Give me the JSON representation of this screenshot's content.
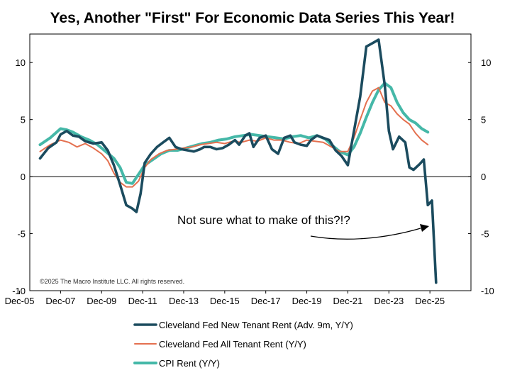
{
  "chart_data": {
    "type": "line",
    "title": "Yes, Another \"First\" For Economic Data Series This Year!",
    "x_tick_labels": [
      "Dec-05",
      "Dec-07",
      "Dec-09",
      "Dec-11",
      "Dec-13",
      "Dec-15",
      "Dec-17",
      "Dec-19",
      "Dec-21",
      "Dec-23",
      "Dec-25"
    ],
    "xlim": [
      2005.5,
      2027.0
    ],
    "ylim": [
      -10,
      12.5
    ],
    "y_ticks": [
      -10,
      -5,
      0,
      5,
      10
    ],
    "y_tick_labels": [
      "-10",
      "-5",
      "0",
      "5",
      "10"
    ],
    "zero_line": true,
    "annotation": "Not sure what to make of this?!?",
    "copyright": "©2025 The Macro Institute LLC. All rights reserved.",
    "colors": {
      "new_tenant": "#1b4b5e",
      "all_tenant": "#e4704f",
      "cpi_rent": "#45b8a8"
    },
    "series": [
      {
        "name": "Cleveland Fed New Tenant Rent (Adv. 9m, Y/Y)",
        "color_key": "new_tenant",
        "x": [
          2006.0,
          2006.4,
          2006.8,
          2007.0,
          2007.3,
          2007.6,
          2007.9,
          2008.2,
          2008.6,
          2009.0,
          2009.3,
          2009.6,
          2009.9,
          2010.2,
          2010.5,
          2010.7,
          2010.9,
          2011.1,
          2011.4,
          2011.7,
          2012.0,
          2012.3,
          2012.6,
          2012.9,
          2013.2,
          2013.5,
          2013.8,
          2014.0,
          2014.3,
          2014.6,
          2014.9,
          2015.2,
          2015.5,
          2015.7,
          2016.0,
          2016.2,
          2016.4,
          2016.7,
          2017.0,
          2017.3,
          2017.6,
          2017.9,
          2018.2,
          2018.4,
          2018.7,
          2019.0,
          2019.2,
          2019.5,
          2019.8,
          2020.1,
          2020.4,
          2020.7,
          2021.0,
          2021.3,
          2021.6,
          2021.9,
          2022.2,
          2022.5,
          2022.8,
          2023.0,
          2023.2,
          2023.5,
          2023.8,
          2024.0,
          2024.2,
          2024.5,
          2024.7,
          2024.9,
          2025.1,
          2025.3
        ],
        "values": [
          1.6,
          2.5,
          3.0,
          3.7,
          4.0,
          3.6,
          3.5,
          3.1,
          2.9,
          3.0,
          2.3,
          1.0,
          -0.7,
          -2.5,
          -2.8,
          -3.1,
          -1.5,
          1.2,
          2.0,
          2.6,
          3.0,
          3.4,
          2.6,
          2.4,
          2.3,
          2.2,
          2.4,
          2.6,
          2.6,
          2.4,
          2.5,
          2.8,
          3.2,
          2.8,
          3.6,
          3.8,
          2.6,
          3.4,
          3.6,
          2.4,
          2.0,
          3.4,
          3.6,
          3.0,
          2.8,
          2.7,
          3.2,
          3.6,
          3.4,
          3.2,
          2.3,
          1.8,
          1.0,
          4.0,
          7.0,
          11.4,
          11.7,
          12.0,
          8.0,
          4.0,
          2.4,
          3.5,
          3.0,
          0.8,
          0.6,
          1.1,
          1.5,
          -2.5,
          -2.1,
          -9.3
        ]
      },
      {
        "name": "Cleveland Fed All Tenant Rent (Y/Y)",
        "color_key": "all_tenant",
        "x": [
          2006.0,
          2006.5,
          2007.0,
          2007.4,
          2007.8,
          2008.2,
          2008.6,
          2009.0,
          2009.3,
          2009.6,
          2009.9,
          2010.2,
          2010.5,
          2010.8,
          2011.1,
          2011.4,
          2011.8,
          2012.2,
          2012.6,
          2013.0,
          2013.4,
          2013.8,
          2014.2,
          2014.6,
          2015.0,
          2015.4,
          2015.8,
          2016.2,
          2016.6,
          2017.0,
          2017.4,
          2017.8,
          2018.2,
          2018.6,
          2019.0,
          2019.4,
          2019.8,
          2020.2,
          2020.6,
          2021.0,
          2021.3,
          2021.6,
          2021.9,
          2022.2,
          2022.5,
          2022.8,
          2023.1,
          2023.4,
          2023.7,
          2024.0,
          2024.3,
          2024.6,
          2024.9
        ],
        "values": [
          2.2,
          2.8,
          3.2,
          3.0,
          2.6,
          2.9,
          2.5,
          2.0,
          1.4,
          0.3,
          -0.5,
          -0.9,
          -0.9,
          -0.4,
          0.8,
          1.5,
          2.0,
          2.3,
          2.4,
          2.5,
          2.6,
          2.8,
          2.9,
          3.0,
          2.9,
          3.1,
          3.0,
          3.2,
          3.1,
          3.4,
          3.2,
          3.2,
          3.0,
          2.9,
          3.2,
          3.1,
          3.0,
          2.6,
          2.2,
          2.2,
          3.4,
          5.0,
          6.5,
          7.5,
          7.8,
          6.5,
          6.2,
          5.5,
          5.0,
          4.6,
          3.8,
          3.2,
          2.8
        ]
      },
      {
        "name": "CPI Rent (Y/Y)",
        "color_key": "cpi_rent",
        "x": [
          2006.0,
          2006.5,
          2007.0,
          2007.3,
          2007.6,
          2008.0,
          2008.4,
          2008.8,
          2009.2,
          2009.6,
          2009.9,
          2010.2,
          2010.5,
          2010.8,
          2011.1,
          2011.5,
          2011.9,
          2012.3,
          2012.7,
          2013.1,
          2013.5,
          2013.9,
          2014.3,
          2014.7,
          2015.1,
          2015.5,
          2015.9,
          2016.3,
          2016.7,
          2017.1,
          2017.5,
          2017.9,
          2018.3,
          2018.7,
          2019.1,
          2019.5,
          2019.9,
          2020.2,
          2020.6,
          2021.0,
          2021.3,
          2021.6,
          2021.9,
          2022.2,
          2022.5,
          2022.8,
          2023.1,
          2023.4,
          2023.7,
          2024.0,
          2024.3,
          2024.6,
          2024.9
        ],
        "values": [
          2.8,
          3.4,
          4.2,
          4.1,
          3.9,
          3.5,
          3.2,
          2.8,
          2.2,
          1.6,
          0.8,
          -0.5,
          -0.6,
          0.2,
          1.0,
          1.5,
          2.0,
          2.3,
          2.3,
          2.5,
          2.7,
          2.9,
          3.0,
          3.2,
          3.3,
          3.5,
          3.6,
          3.7,
          3.6,
          3.5,
          3.4,
          3.3,
          3.5,
          3.6,
          3.4,
          3.6,
          3.3,
          2.8,
          2.2,
          1.9,
          2.6,
          3.8,
          5.2,
          6.5,
          7.6,
          8.2,
          7.8,
          6.5,
          5.6,
          5.0,
          4.7,
          4.2,
          3.9
        ]
      }
    ]
  }
}
